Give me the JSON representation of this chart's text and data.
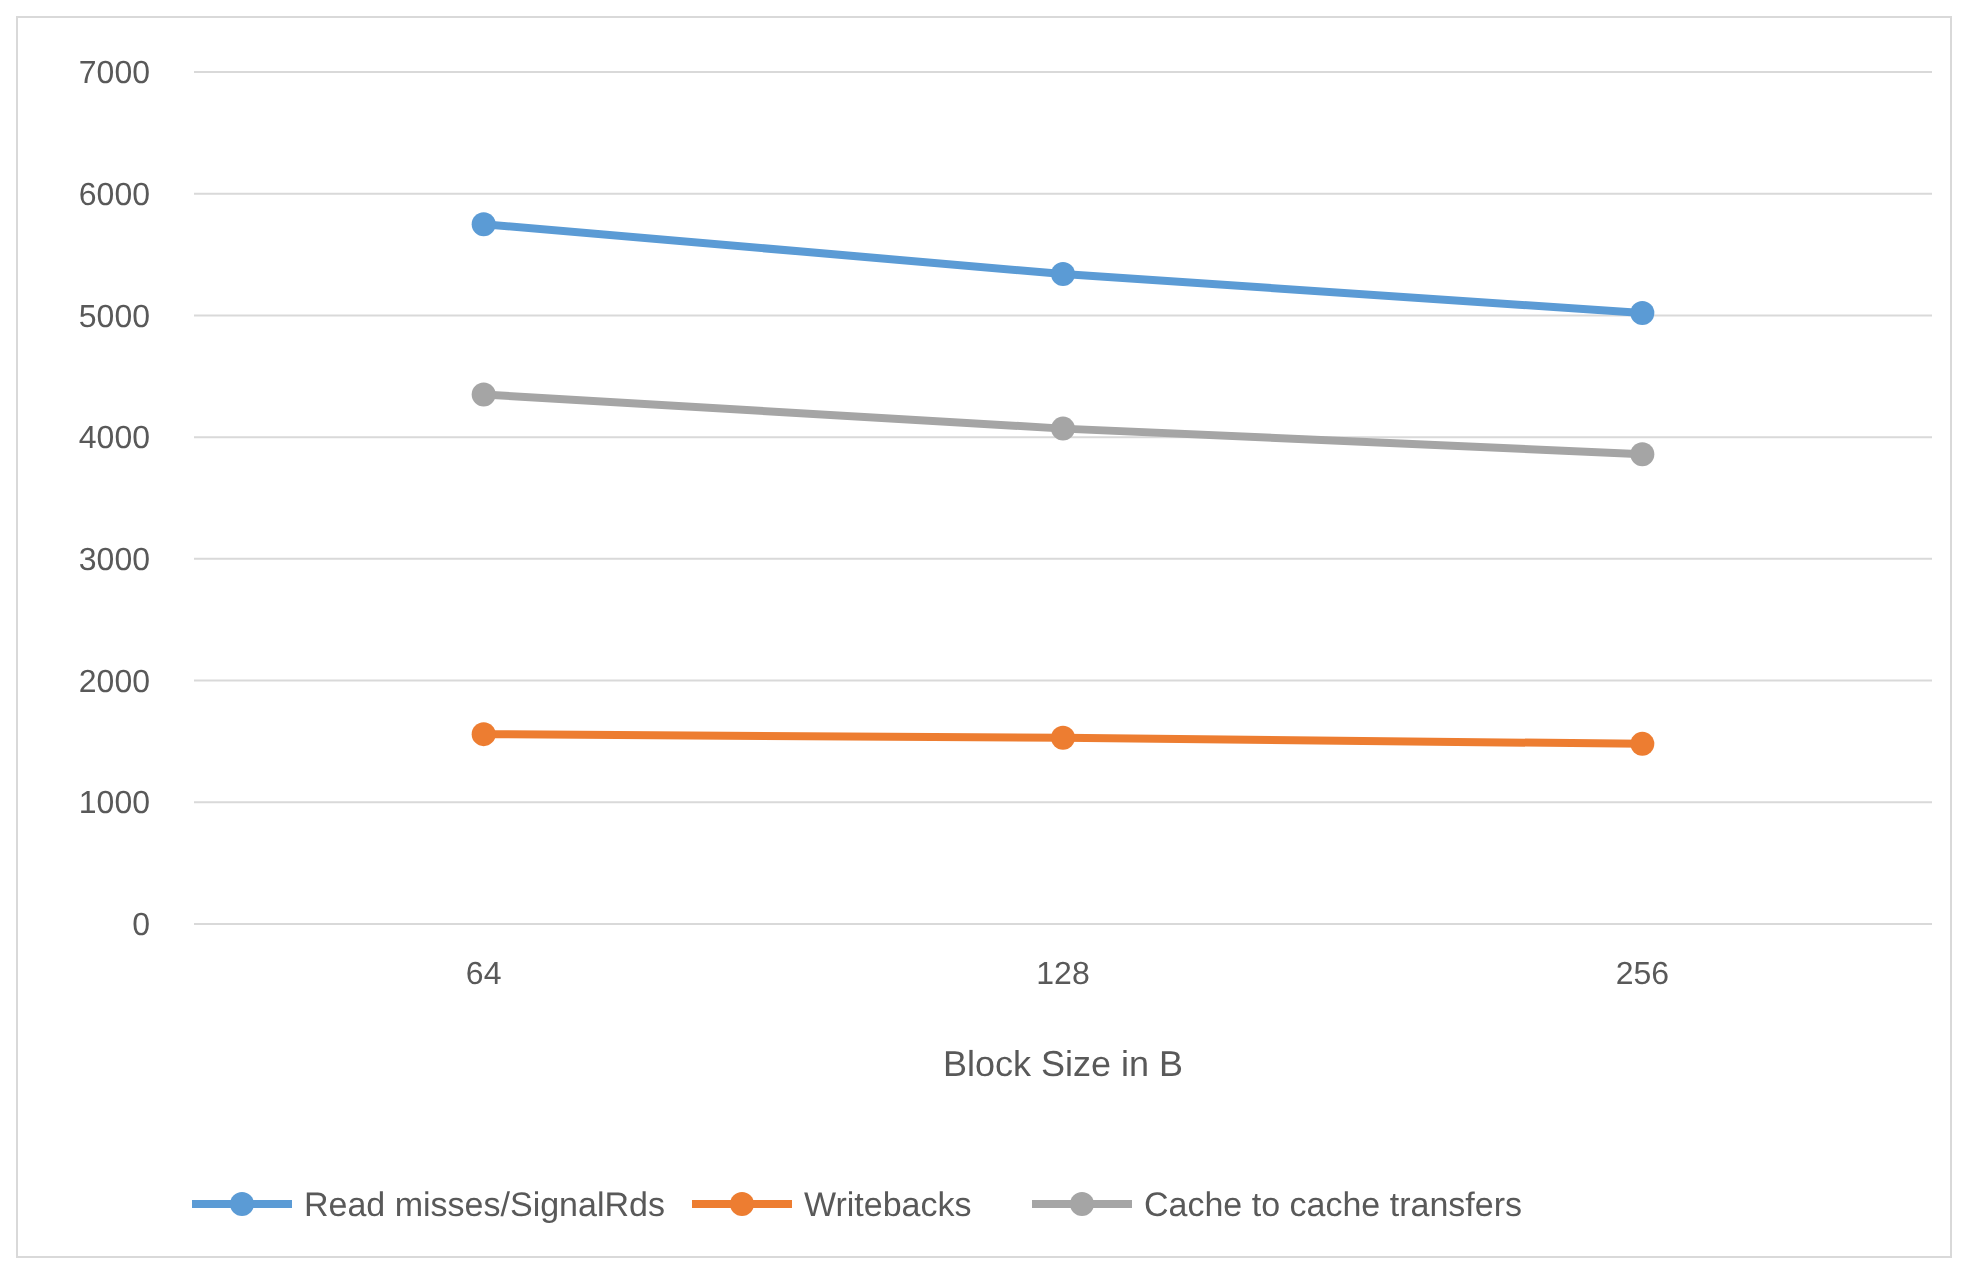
{
  "chart_data": {
    "type": "line",
    "xlabel": "Block Size in B",
    "categories": [
      "64",
      "128",
      "256"
    ],
    "series": [
      {
        "name": "Read misses/SignalRds",
        "color": "#5b9bd5",
        "values": [
          5750,
          5340,
          5020
        ]
      },
      {
        "name": "Writebacks",
        "color": "#ed7d31",
        "values": [
          1560,
          1530,
          1480
        ]
      },
      {
        "name": "Cache to cache transfers",
        "color": "#a5a5a5",
        "values": [
          4350,
          4070,
          3860
        ]
      }
    ],
    "ylim": [
      0,
      7000
    ],
    "yticks": [
      0,
      1000,
      2000,
      3000,
      4000,
      5000,
      6000,
      7000
    ],
    "grid": "y",
    "legend": "bottom",
    "marker": "circle",
    "line_style": "solid"
  }
}
